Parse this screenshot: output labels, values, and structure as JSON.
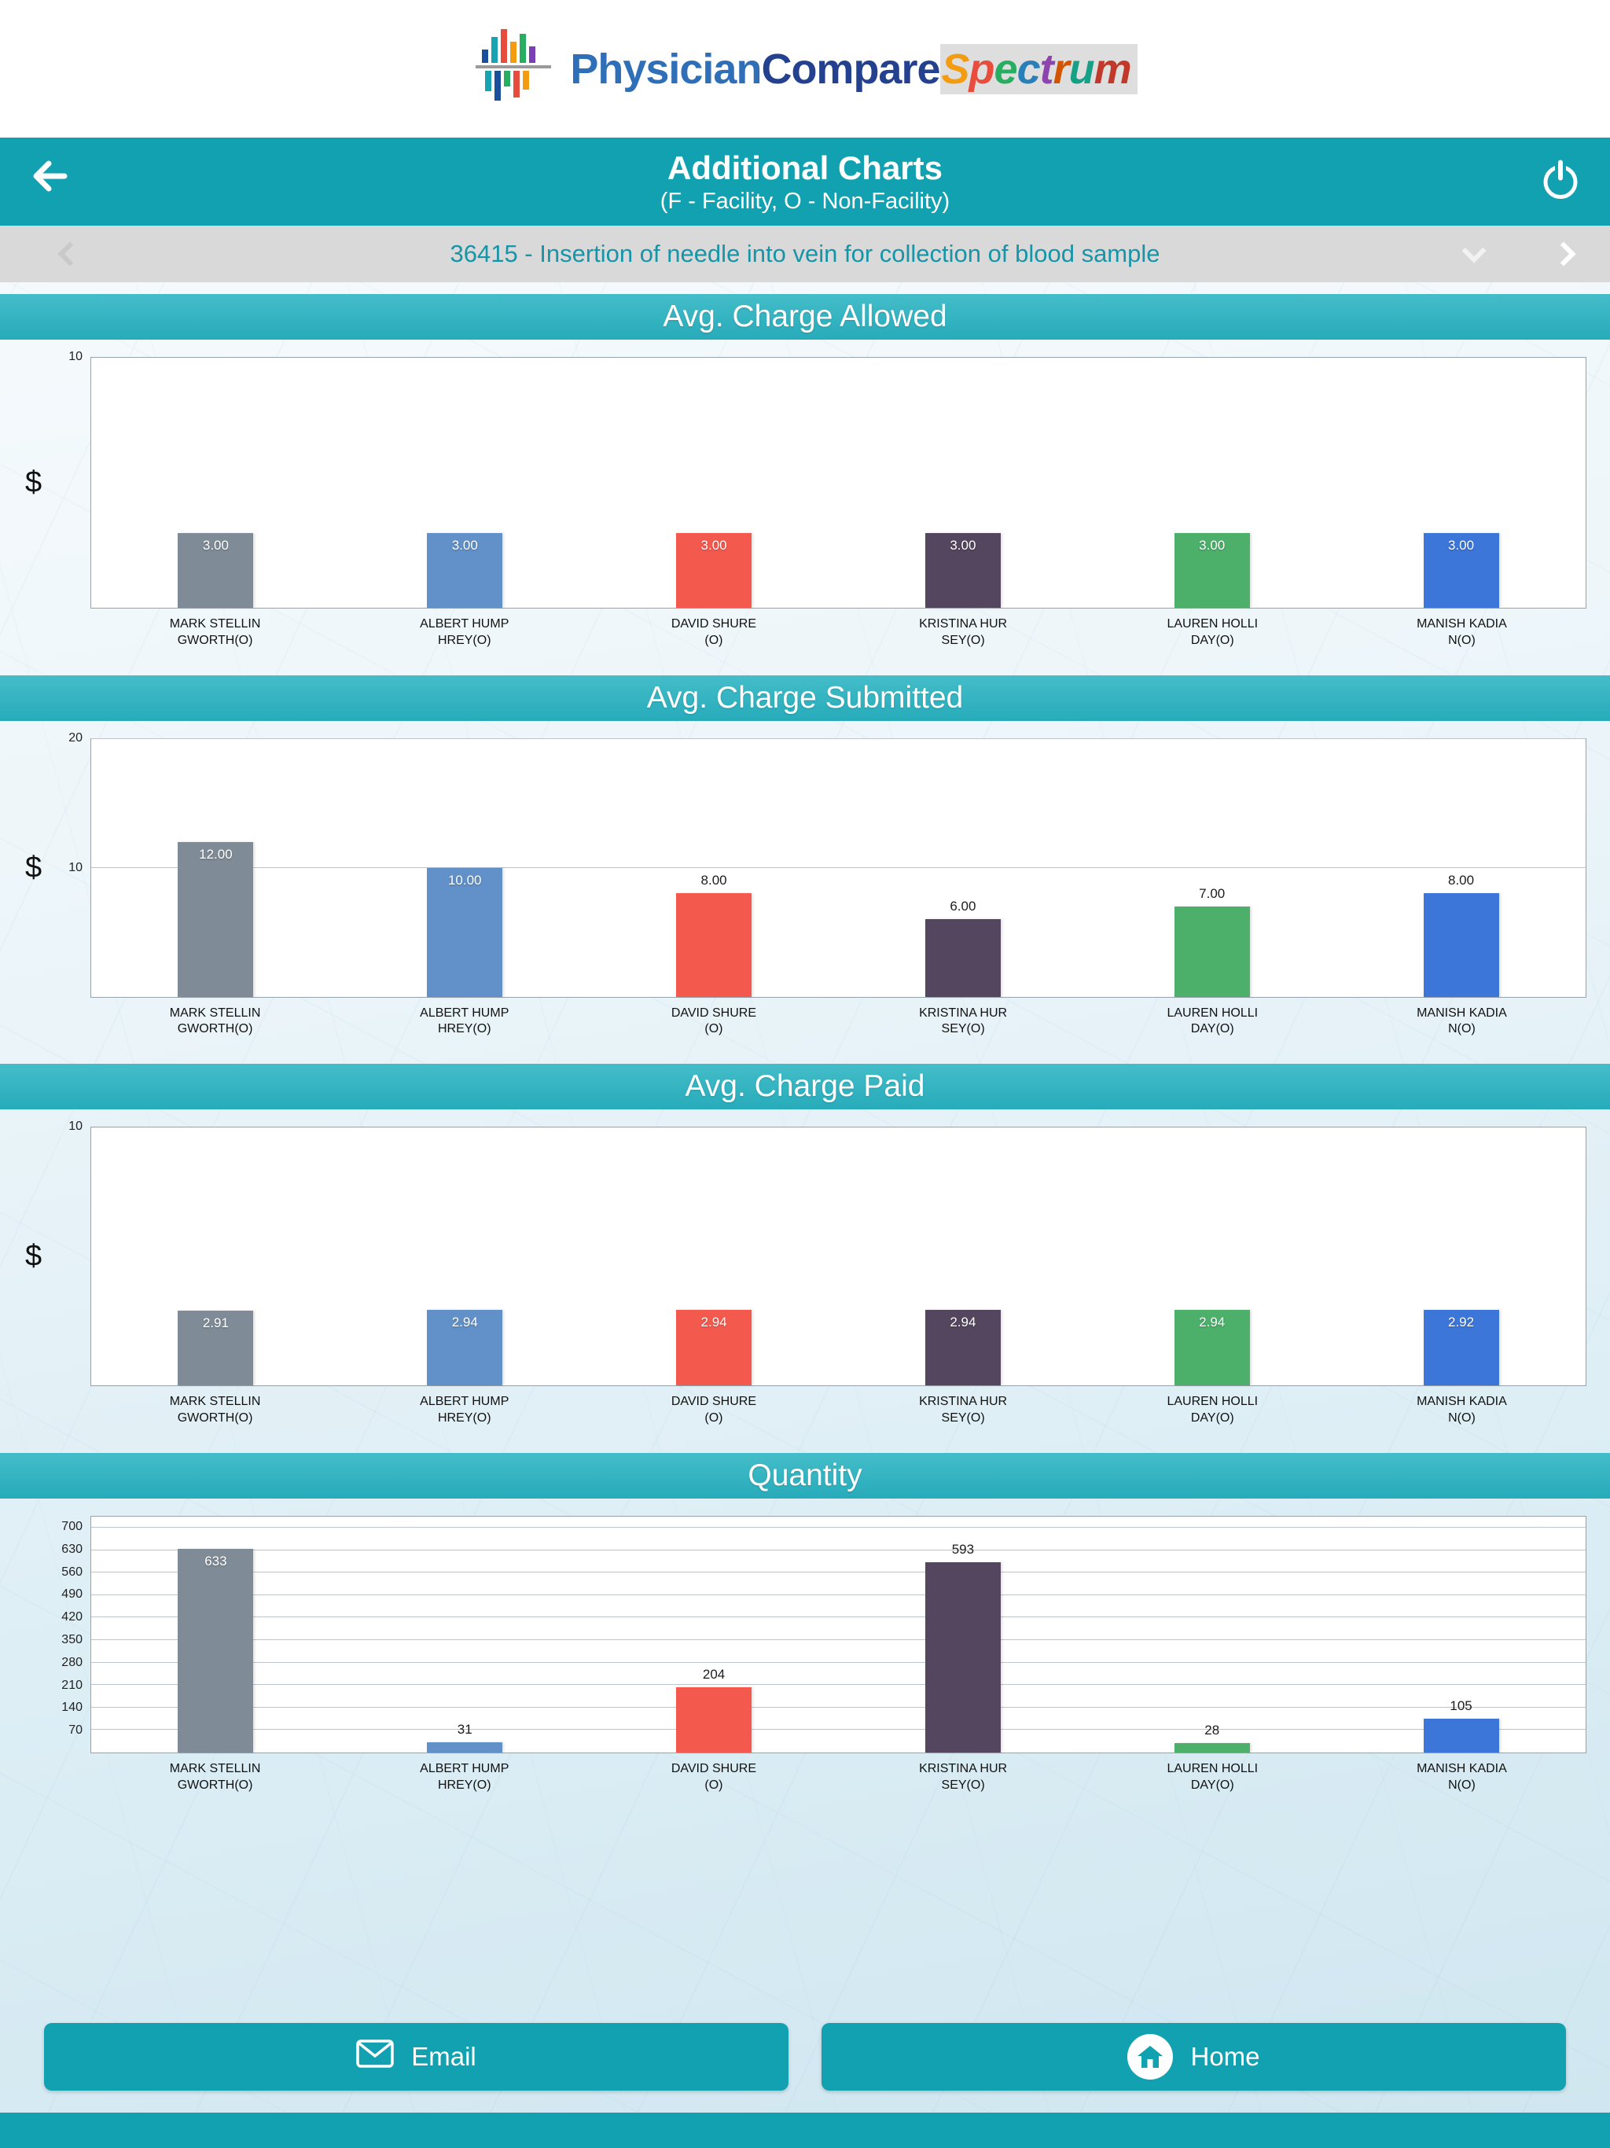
{
  "logo": {
    "physician": "Physician",
    "compare": "Compare",
    "spectrum_letters": [
      [
        "S",
        "#f39c12"
      ],
      [
        "p",
        "#e74c3c"
      ],
      [
        "e",
        "#27ae60"
      ],
      [
        "c",
        "#2980b9"
      ],
      [
        "t",
        "#8e44ad"
      ],
      [
        "r",
        "#d35400"
      ],
      [
        "u",
        "#16a085"
      ],
      [
        "m",
        "#c0392b"
      ]
    ],
    "physician_color": "#2f6fb7",
    "compare_color": "#24418f"
  },
  "nav": {
    "title": "Additional Charts",
    "subtitle": "(F - Facility, O - Non-Facility)"
  },
  "code_bar": {
    "label": "36415 - Insertion of needle into vein for collection of blood sample"
  },
  "colors": {
    "accent": "#12a1b0",
    "section_header": "#2fb3c1",
    "bar_colors": [
      "#7f8b96",
      "#6191c8",
      "#f4594e",
      "#54465e",
      "#4cb06b",
      "#3d76d9"
    ]
  },
  "chart_data": [
    {
      "type": "bar",
      "title": "Avg. Charge Allowed",
      "ylabel": "$",
      "ylim": [
        0,
        10
      ],
      "yticks": [
        10
      ],
      "grid": false,
      "legend": "none",
      "categories": [
        "MARK STELLINGWORTH(O)",
        "ALBERT HUMPHREY(O)",
        "DAVID SHURE(O)",
        "KRISTINA HURSEY(O)",
        "LAUREN HOLLIDAY(O)",
        "MANISH KADIAN(O)"
      ],
      "values": [
        3.0,
        3.0,
        3.0,
        3.0,
        3.0,
        3.0
      ],
      "value_labels": [
        "3.00",
        "3.00",
        "3.00",
        "3.00",
        "3.00",
        "3.00"
      ],
      "label_inside": [
        true,
        true,
        true,
        true,
        true,
        true
      ]
    },
    {
      "type": "bar",
      "title": "Avg. Charge Submitted",
      "ylabel": "$",
      "ylim": [
        0,
        20
      ],
      "yticks": [
        10,
        20
      ],
      "grid": true,
      "legend": "none",
      "categories": [
        "MARK STELLINGWORTH(O)",
        "ALBERT HUMPHREY(O)",
        "DAVID SHURE(O)",
        "KRISTINA HURSEY(O)",
        "LAUREN HOLLIDAY(O)",
        "MANISH KADIAN(O)"
      ],
      "values": [
        12.0,
        10.0,
        8.0,
        6.0,
        7.0,
        8.0
      ],
      "value_labels": [
        "12.00",
        "10.00",
        "8.00",
        "6.00",
        "7.00",
        "8.00"
      ],
      "label_inside": [
        true,
        true,
        false,
        false,
        false,
        false
      ]
    },
    {
      "type": "bar",
      "title": "Avg. Charge Paid",
      "ylabel": "$",
      "ylim": [
        0,
        10
      ],
      "yticks": [
        10
      ],
      "grid": false,
      "legend": "none",
      "categories": [
        "MARK STELLINGWORTH(O)",
        "ALBERT HUMPHREY(O)",
        "DAVID SHURE(O)",
        "KRISTINA HURSEY(O)",
        "LAUREN HOLLIDAY(O)",
        "MANISH KADIAN(O)"
      ],
      "values": [
        2.91,
        2.94,
        2.94,
        2.94,
        2.94,
        2.92
      ],
      "value_labels": [
        "2.91",
        "2.94",
        "2.94",
        "2.94",
        "2.94",
        "2.92"
      ],
      "label_inside": [
        true,
        true,
        true,
        true,
        true,
        true
      ]
    },
    {
      "type": "bar",
      "title": "Quantity",
      "ylabel": "",
      "ylim": [
        0,
        735
      ],
      "yticks": [
        70,
        140,
        210,
        280,
        350,
        420,
        490,
        560,
        630,
        700
      ],
      "grid": true,
      "legend": "none",
      "categories": [
        "MARK STELLINGWORTH(O)",
        "ALBERT HUMPHREY(O)",
        "DAVID SHURE(O)",
        "KRISTINA HURSEY(O)",
        "LAUREN HOLLIDAY(O)",
        "MANISH KADIAN(O)"
      ],
      "values": [
        633,
        31,
        204,
        593,
        28,
        105
      ],
      "value_labels": [
        "633",
        "31",
        "204",
        "593",
        "28",
        "105"
      ],
      "label_inside": [
        true,
        false,
        false,
        false,
        false,
        false
      ]
    }
  ],
  "footer": {
    "email": "Email",
    "home": "Home"
  }
}
